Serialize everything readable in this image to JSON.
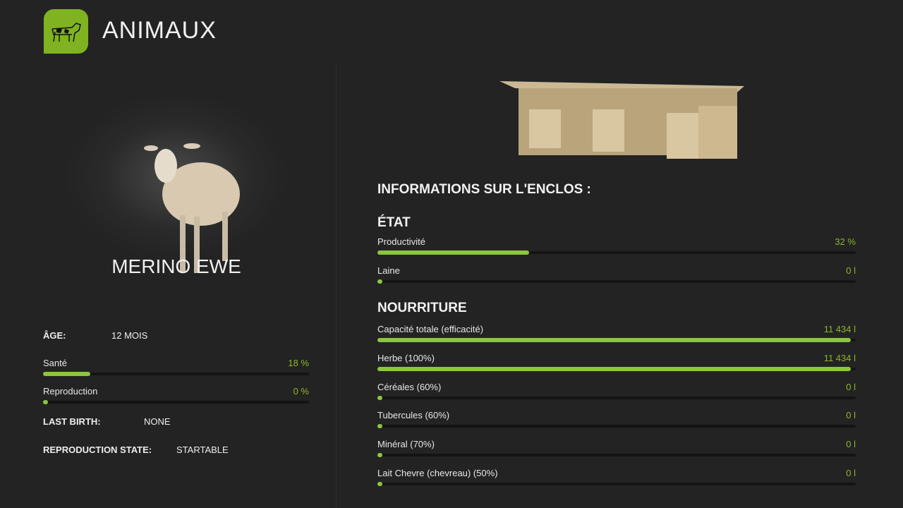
{
  "header": {
    "title": "ANIMAUX",
    "icon": "cow-icon",
    "accent": "#8cc63f"
  },
  "animal": {
    "name": "MERINO EWE",
    "age_label": "ÂGE:",
    "age_value": "12 MOIS",
    "bars": [
      {
        "label": "Santé",
        "value": "18 %",
        "fraction": 0.18
      },
      {
        "label": "Reproduction",
        "value": "0 %",
        "fraction": 0
      }
    ],
    "last_birth_label": "LAST BIRTH:",
    "last_birth_value": "NONE",
    "repro_state_label": "REPRODUCTION STATE:",
    "repro_state_value": "STARTABLE"
  },
  "enclosure": {
    "title": "INFORMATIONS SUR L'ENCLOS :",
    "state_heading": "ÉTAT",
    "state": [
      {
        "label": "Productivité",
        "value": "32 %",
        "fraction": 0.32
      },
      {
        "label": "Laine",
        "value": "0 l",
        "fraction": 0
      }
    ],
    "food_heading": "NOURRITURE",
    "food": [
      {
        "label": "Capacité totale (efficacité)",
        "value": "11 434 l",
        "fraction": 1
      },
      {
        "label": "Herbe (100%)",
        "value": "11 434 l",
        "fraction": 1
      },
      {
        "label": "Céréales (60%)",
        "value": "0 l",
        "fraction": 0
      },
      {
        "label": "Tubercules (60%)",
        "value": "0 l",
        "fraction": 0
      },
      {
        "label": "Minéral (70%)",
        "value": "0 l",
        "fraction": 0
      },
      {
        "label": "Lait Chevre (chevreau) (50%)",
        "value": "0 l",
        "fraction": 0
      }
    ]
  }
}
